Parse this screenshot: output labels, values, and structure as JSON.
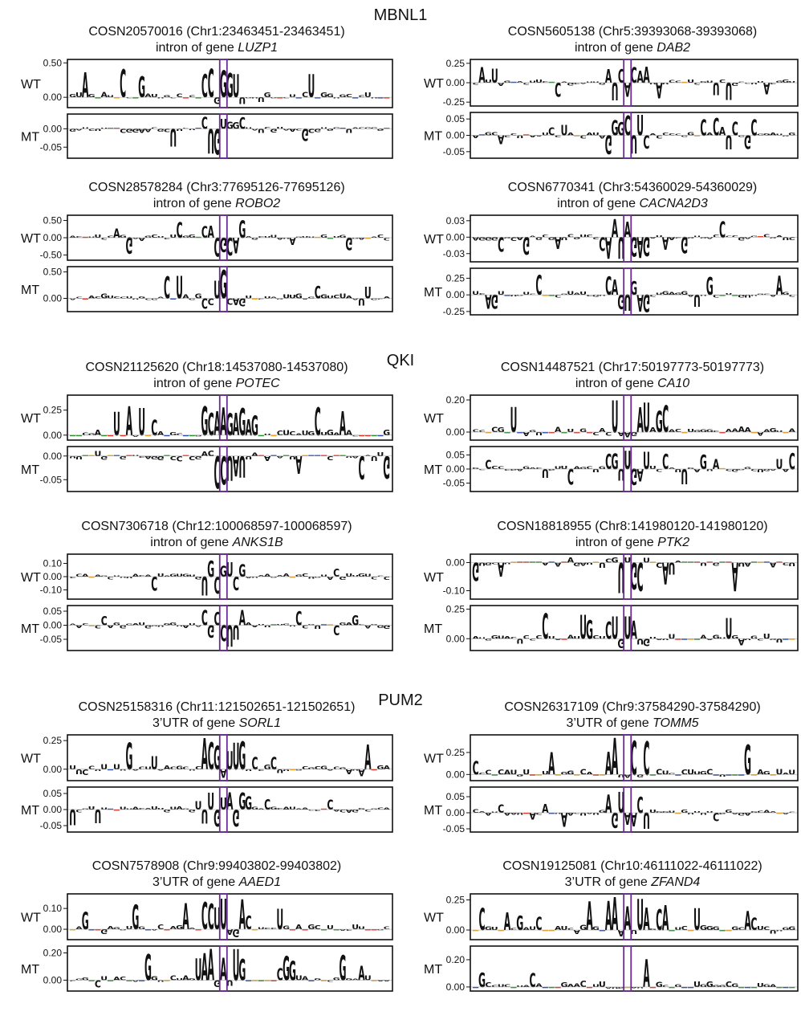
{
  "colors": {
    "A": "#2a8c2a",
    "C": "#2447a8",
    "G": "#f3a31d",
    "U": "#e03020",
    "marker": "#6a2c91",
    "frame": "#111111"
  },
  "sections": [
    {
      "name": "MBNL1"
    },
    {
      "name": "QKI"
    },
    {
      "name": "PUM2"
    }
  ],
  "chart_data": [
    {
      "type": "sequence-logo",
      "section": "MBNL1",
      "mutation": "COSN20570016 (Chr1:23463451-23463451)",
      "region": "intron of gene",
      "gene": "LUZP1",
      "panels": [
        {
          "label": "WT",
          "ticks": [
            "0.50",
            "0.00"
          ],
          "ylim": [
            -0.15,
            0.55
          ]
        },
        {
          "label": "MT",
          "ticks": [
            "0.00",
            "-0.05"
          ],
          "ylim": [
            -0.08,
            0.04
          ]
        }
      ]
    },
    {
      "type": "sequence-logo",
      "section": "MBNL1",
      "mutation": "COSN5605138 (Chr5:39393068-39393068)",
      "region": "intron of gene",
      "gene": "DAB2",
      "panels": [
        {
          "label": "WT",
          "ticks": [
            "0.25",
            "0.00",
            "-0.25"
          ],
          "ylim": [
            -0.3,
            0.3
          ]
        },
        {
          "label": "MT",
          "ticks": [
            "0.05",
            "0.00",
            "-0.05"
          ],
          "ylim": [
            -0.07,
            0.07
          ]
        }
      ]
    },
    {
      "type": "sequence-logo",
      "section": "MBNL1",
      "mutation": "COSN28578284 (Chr3:77695126-77695126)",
      "region": "intron of gene",
      "gene": "ROBO2",
      "panels": [
        {
          "label": "WT",
          "ticks": [
            "0.50",
            "0.00",
            "-0.50"
          ],
          "ylim": [
            -0.65,
            0.65
          ]
        },
        {
          "label": "MT",
          "ticks": [
            "0.50",
            "0.00"
          ],
          "ylim": [
            -0.25,
            0.6
          ]
        }
      ]
    },
    {
      "type": "sequence-logo",
      "section": "MBNL1",
      "mutation": "COSN6770341 (Chr3:54360029-54360029)",
      "region": "intron of gene",
      "gene": "CACNA2D3",
      "panels": [
        {
          "label": "WT",
          "ticks": [
            "0.03",
            "0.00",
            "-0.03"
          ],
          "ylim": [
            -0.045,
            0.04
          ]
        },
        {
          "label": "MT",
          "ticks": [
            "0.25",
            "0.00",
            "-0.25"
          ],
          "ylim": [
            -0.3,
            0.4
          ]
        }
      ]
    },
    {
      "type": "sequence-logo",
      "section": "QKI",
      "mutation": "COSN21125620 (Chr18:14537080-14537080)",
      "region": "intron of gene",
      "gene": "POTEC",
      "panels": [
        {
          "label": "WT",
          "ticks": [
            "0.25",
            "0.00"
          ],
          "ylim": [
            -0.05,
            0.4
          ]
        },
        {
          "label": "MT",
          "ticks": [
            "0.00",
            "-0.05"
          ],
          "ylim": [
            -0.075,
            0.02
          ]
        }
      ]
    },
    {
      "type": "sequence-logo",
      "section": "QKI",
      "mutation": "COSN14487521 (Chr17:50197773-50197773)",
      "region": "intron of gene",
      "gene": "CA10",
      "panels": [
        {
          "label": "WT",
          "ticks": [
            "0.20",
            "0.00"
          ],
          "ylim": [
            -0.05,
            0.23
          ]
        },
        {
          "label": "MT",
          "ticks": [
            "0.05",
            "0.00",
            "-0.05"
          ],
          "ylim": [
            -0.08,
            0.08
          ]
        }
      ]
    },
    {
      "type": "sequence-logo",
      "section": "QKI",
      "mutation": "COSN7306718 (Chr12:100068597-100068597)",
      "region": "intron of gene",
      "gene": "ANKS1B",
      "panels": [
        {
          "label": "WT",
          "ticks": [
            "0.10",
            "0.00",
            "-0.10"
          ],
          "ylim": [
            -0.17,
            0.17
          ]
        },
        {
          "label": "MT",
          "ticks": [
            "0.05",
            "0.00",
            "-0.05"
          ],
          "ylim": [
            -0.09,
            0.07
          ]
        }
      ]
    },
    {
      "type": "sequence-logo",
      "section": "QKI",
      "mutation": "COSN18818955 (Chr8:141980120-141980120)",
      "region": "intron of gene",
      "gene": "PTK2",
      "panels": [
        {
          "label": "WT",
          "ticks": [
            "0.00",
            "-0.10"
          ],
          "ylim": [
            -0.13,
            0.03
          ]
        },
        {
          "label": "MT",
          "ticks": [
            "0.25",
            "0.00"
          ],
          "ylim": [
            -0.1,
            0.28
          ]
        }
      ]
    },
    {
      "type": "sequence-logo",
      "section": "PUM2",
      "mutation": "COSN25158316 (Chr11:121502651-121502651)",
      "region": "3’UTR of gene",
      "gene": "SORL1",
      "panels": [
        {
          "label": "WT",
          "ticks": [
            "0.25",
            "0.00"
          ],
          "ylim": [
            -0.1,
            0.3
          ]
        },
        {
          "label": "MT",
          "ticks": [
            "0.05",
            "0.00",
            "-0.05"
          ],
          "ylim": [
            -0.07,
            0.07
          ]
        }
      ]
    },
    {
      "type": "sequence-logo",
      "section": "PUM2",
      "mutation": "COSN26317109 (Chr9:37584290-37584290)",
      "region": "3’UTR of gene",
      "gene": "TOMM5",
      "panels": [
        {
          "label": "WT",
          "ticks": [
            "0.25",
            "0.00"
          ],
          "ylim": [
            -0.07,
            0.45
          ]
        },
        {
          "label": "MT",
          "ticks": [
            "0.05",
            "0.00",
            "-0.05"
          ],
          "ylim": [
            -0.06,
            0.08
          ]
        }
      ]
    },
    {
      "type": "sequence-logo",
      "section": "PUM2",
      "mutation": "COSN7578908 (Chr9:99403802-99403802)",
      "region": "3’UTR of gene",
      "gene": "AAED1",
      "panels": [
        {
          "label": "WT",
          "ticks": [
            "0.10",
            "0.00"
          ],
          "ylim": [
            -0.05,
            0.17
          ]
        },
        {
          "label": "MT",
          "ticks": [
            "0.20",
            "0.00"
          ],
          "ylim": [
            -0.08,
            0.25
          ]
        }
      ]
    },
    {
      "type": "sequence-logo",
      "section": "PUM2",
      "mutation": "COSN19125081 (Chr10:46111022-46111022)",
      "region": "3’UTR of gene",
      "gene": "ZFAND4",
      "panels": [
        {
          "label": "WT",
          "ticks": [
            "0.25",
            "0.00"
          ],
          "ylim": [
            -0.08,
            0.3
          ]
        },
        {
          "label": "MT",
          "ticks": [
            "0.20",
            "0.00"
          ],
          "ylim": [
            -0.03,
            0.3
          ]
        }
      ]
    }
  ]
}
